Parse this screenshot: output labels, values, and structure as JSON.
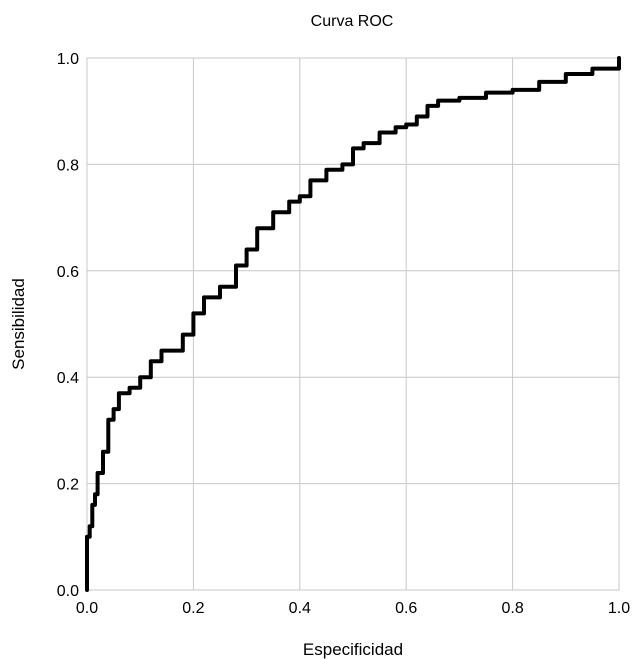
{
  "chart_data": {
    "type": "line",
    "title": "Curva ROC",
    "xlabel": "Especificidad",
    "ylabel": "Sensibilidad",
    "xlim": [
      0,
      1
    ],
    "ylim": [
      0,
      1
    ],
    "grid": true,
    "x_ticks": [
      "0.0",
      "0.2",
      "0.4",
      "0.6",
      "0.8",
      "1.0"
    ],
    "y_ticks": [
      "0.0",
      "0.2",
      "0.4",
      "0.6",
      "0.8",
      "1.0"
    ],
    "series": [
      {
        "color": "#000000",
        "x": [
          0,
          0,
          0.005,
          0.01,
          0.015,
          0.02,
          0.03,
          0.04,
          0.05,
          0.06,
          0.08,
          0.1,
          0.12,
          0.14,
          0.16,
          0.18,
          0.2,
          0.22,
          0.25,
          0.28,
          0.3,
          0.32,
          0.35,
          0.38,
          0.4,
          0.42,
          0.45,
          0.48,
          0.5,
          0.52,
          0.55,
          0.58,
          0.6,
          0.62,
          0.64,
          0.66,
          0.7,
          0.75,
          0.8,
          0.85,
          0.9,
          0.95,
          1.0
        ],
        "y": [
          0,
          0.1,
          0.12,
          0.16,
          0.18,
          0.22,
          0.26,
          0.32,
          0.34,
          0.37,
          0.38,
          0.4,
          0.43,
          0.45,
          0.45,
          0.48,
          0.52,
          0.55,
          0.57,
          0.61,
          0.64,
          0.68,
          0.71,
          0.73,
          0.74,
          0.77,
          0.79,
          0.8,
          0.83,
          0.84,
          0.86,
          0.87,
          0.875,
          0.89,
          0.91,
          0.92,
          0.925,
          0.935,
          0.94,
          0.955,
          0.97,
          0.98,
          1.0
        ]
      }
    ]
  }
}
